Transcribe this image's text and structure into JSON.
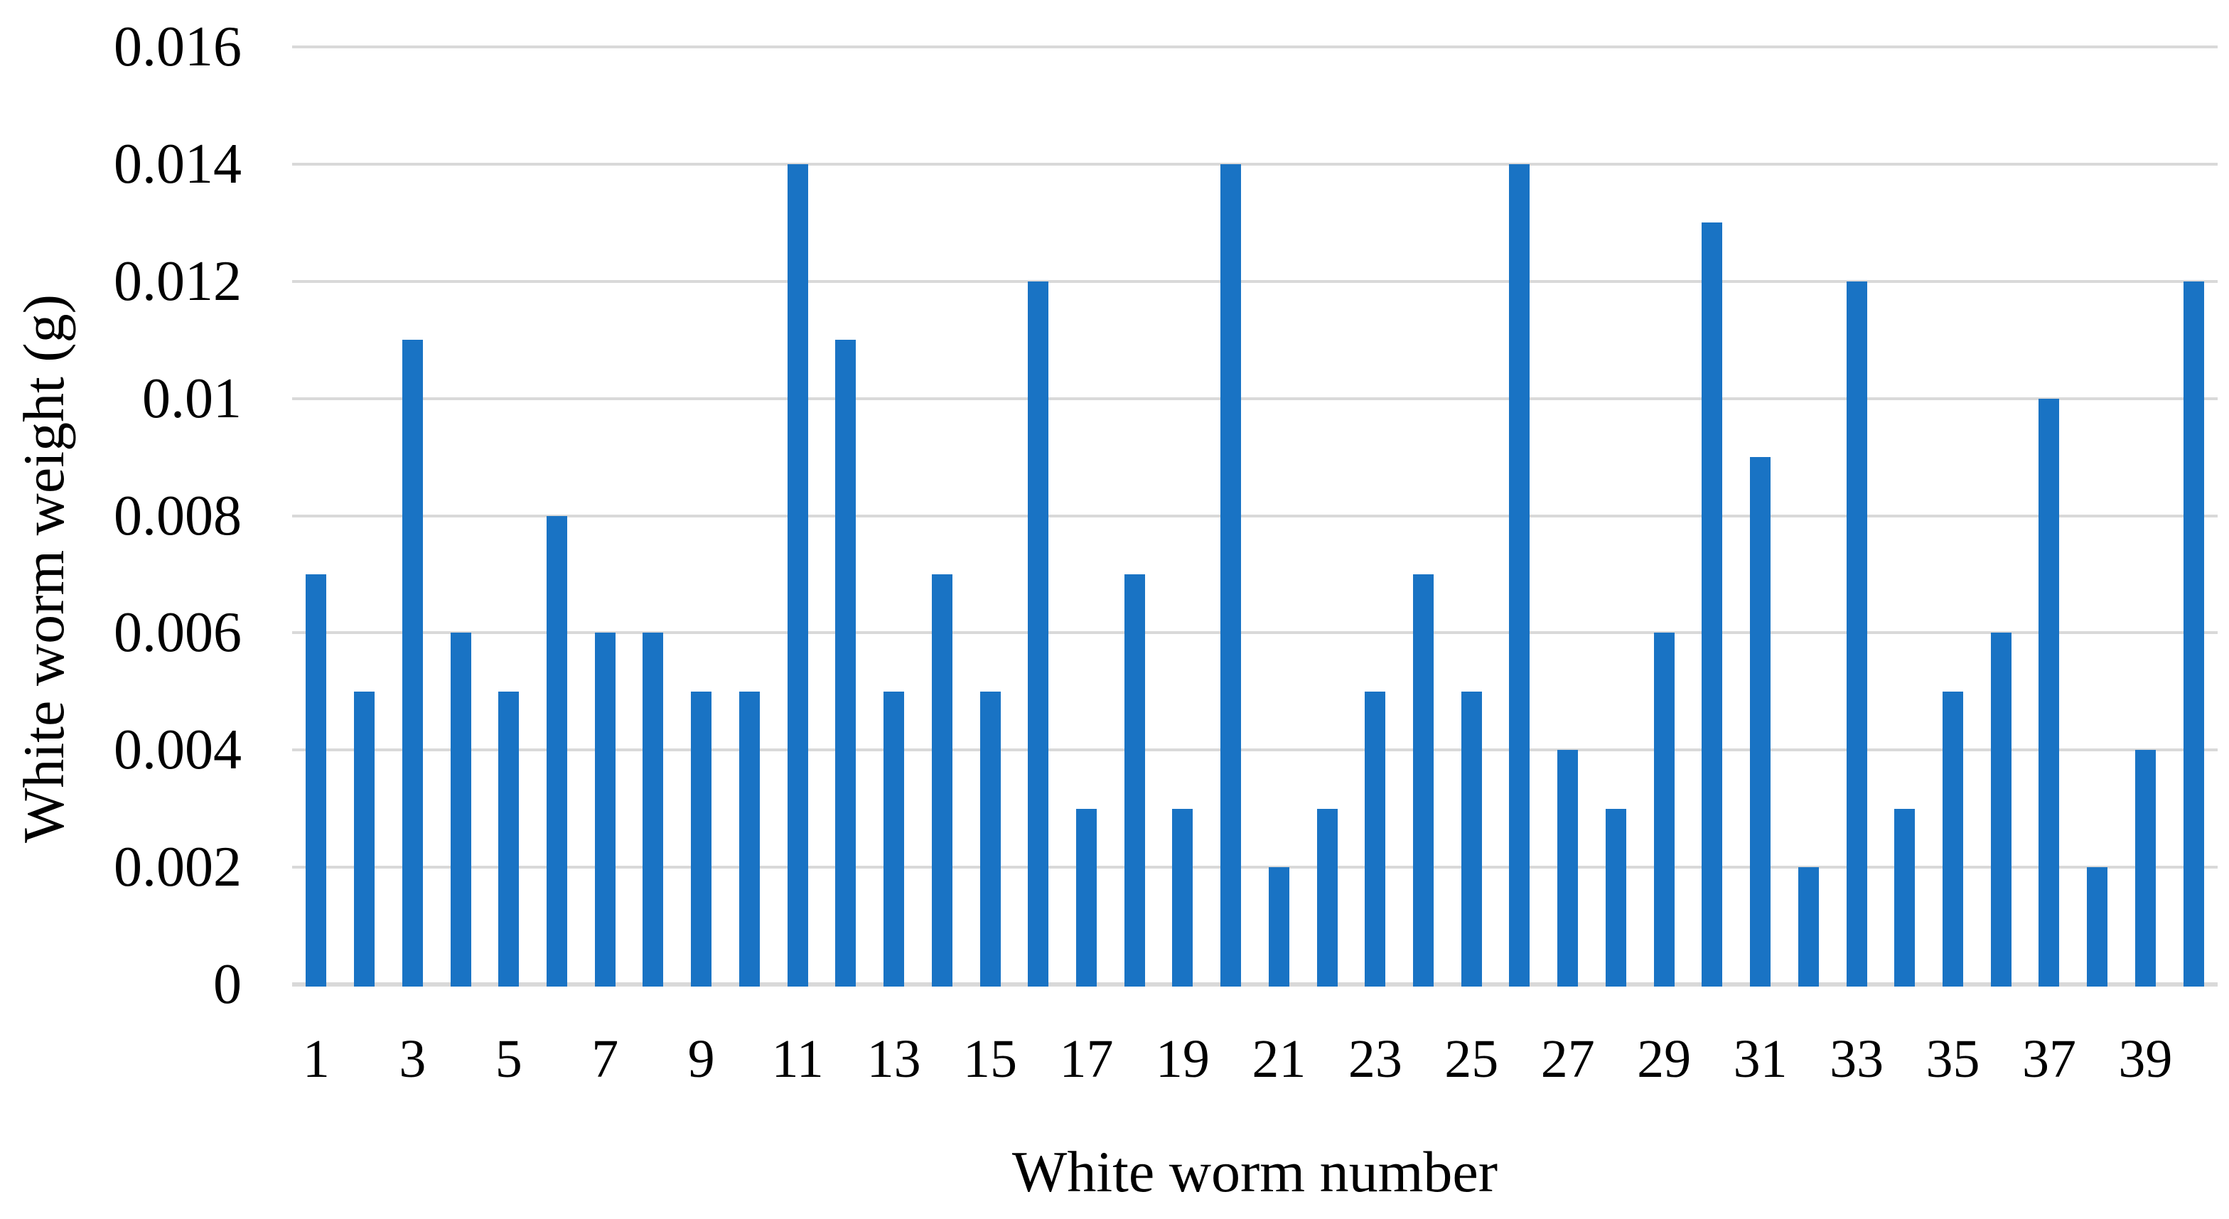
{
  "chart_data": {
    "type": "bar",
    "title": "",
    "xlabel": "White worm number",
    "ylabel": "White worm weight (g)",
    "categories": [
      1,
      2,
      3,
      4,
      5,
      6,
      7,
      8,
      9,
      10,
      11,
      12,
      13,
      14,
      15,
      16,
      17,
      18,
      19,
      20,
      21,
      22,
      23,
      24,
      25,
      26,
      27,
      28,
      29,
      30,
      31,
      32,
      33,
      34,
      35,
      36,
      37,
      38,
      39,
      40
    ],
    "values": [
      0.007,
      0.005,
      0.011,
      0.006,
      0.005,
      0.008,
      0.006,
      0.006,
      0.005,
      0.005,
      0.014,
      0.011,
      0.005,
      0.007,
      0.005,
      0.012,
      0.003,
      0.007,
      0.003,
      0.014,
      0.002,
      0.003,
      0.005,
      0.007,
      0.005,
      0.014,
      0.004,
      0.003,
      0.006,
      0.013,
      0.009,
      0.002,
      0.012,
      0.003,
      0.005,
      0.006,
      0.01,
      0.002,
      0.004,
      0.012
    ],
    "ylim": [
      0,
      0.016
    ],
    "ytick_interval": 0.002,
    "ytick_labels": [
      "0",
      "0.002",
      "0.004",
      "0.006",
      "0.008",
      "0.01",
      "0.012",
      "0.014",
      "0.016"
    ],
    "xtick_labels": [
      "1",
      "3",
      "5",
      "7",
      "9",
      "11",
      "13",
      "15",
      "17",
      "19",
      "21",
      "23",
      "25",
      "27",
      "29",
      "31",
      "33",
      "35",
      "37",
      "39"
    ],
    "xticks_on_odd_bars_only": true,
    "grid": true,
    "legend": null,
    "colors": {
      "bar": "#1973C4",
      "gridline": "#D9D9D9",
      "axisline": "#D9D9D9",
      "text": "#000000",
      "background": "#FFFFFF"
    }
  }
}
